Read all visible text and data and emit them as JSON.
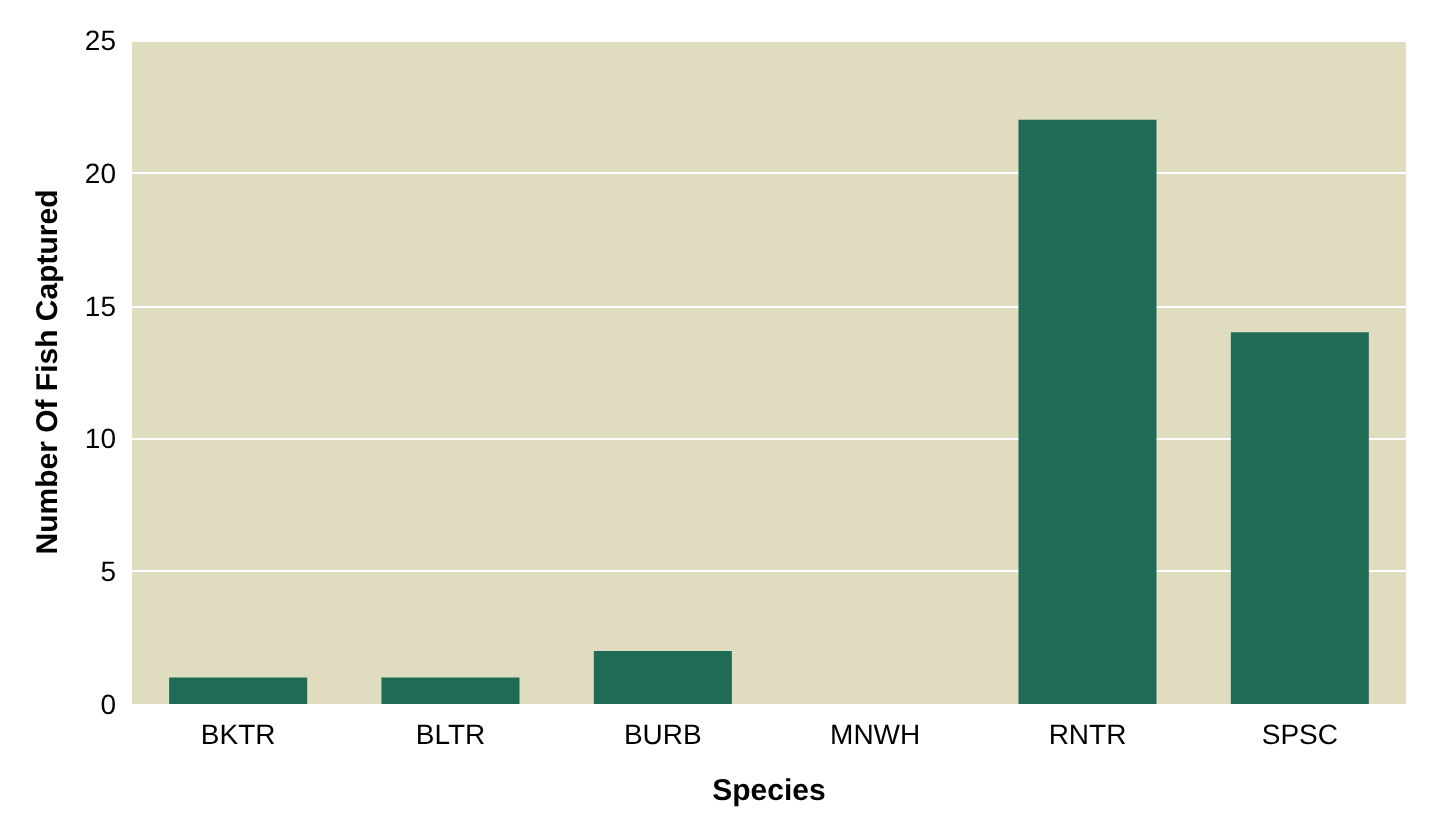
{
  "chart_data": {
    "type": "bar",
    "xlabel": "Species",
    "ylabel": "Number Of Fish Captured",
    "categories": [
      "BKTR",
      "BLTR",
      "BURB",
      "MNWH",
      "RNTR",
      "SPSC"
    ],
    "values": [
      1,
      1,
      2,
      0,
      22,
      14
    ],
    "color": "#1f6b55",
    "ylim": [
      0,
      25
    ],
    "yticks": [
      0,
      5,
      10,
      15,
      20,
      25
    ],
    "grid": "y"
  }
}
